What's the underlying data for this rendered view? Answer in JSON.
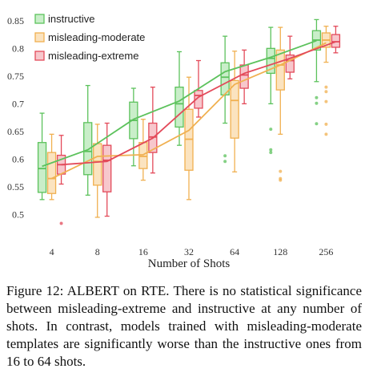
{
  "chart_data": {
    "type": "box",
    "xlabel": "Number of Shots",
    "ylabel": "",
    "categories": [
      "4",
      "8",
      "16",
      "32",
      "64",
      "128",
      "256"
    ],
    "ylim": [
      0.45,
      0.87
    ],
    "yticks": [
      0.5,
      0.55,
      0.6,
      0.65,
      0.7,
      0.75,
      0.8,
      0.85
    ],
    "ytick_labels": [
      "0.5",
      "0.55",
      "0.6",
      "0.65",
      "0.7",
      "0.75",
      "0.8",
      "0.85"
    ],
    "grid": false,
    "legend_position": "top-left",
    "series": [
      {
        "name": "instructive",
        "color": "#5cc25c",
        "fill": "#c9eec9",
        "mean": [
          0.587,
          0.617,
          0.672,
          0.705,
          0.758,
          0.784,
          0.814
        ],
        "boxes": [
          {
            "wlo": 0.527,
            "q1": 0.54,
            "med": 0.583,
            "q3": 0.63,
            "whi": 0.683,
            "out": []
          },
          {
            "wlo": 0.535,
            "q1": 0.572,
            "med": 0.614,
            "q3": 0.666,
            "whi": 0.733,
            "out": []
          },
          {
            "wlo": 0.588,
            "q1": 0.637,
            "med": 0.67,
            "q3": 0.703,
            "whi": 0.728,
            "out": []
          },
          {
            "wlo": 0.625,
            "q1": 0.658,
            "med": 0.7,
            "q3": 0.73,
            "whi": 0.794,
            "out": []
          },
          {
            "wlo": 0.665,
            "q1": 0.716,
            "med": 0.748,
            "q3": 0.774,
            "whi": 0.822,
            "out": [
              0.606,
              0.596
            ]
          },
          {
            "wlo": 0.7,
            "q1": 0.755,
            "med": 0.782,
            "q3": 0.8,
            "whi": 0.838,
            "out": [
              0.654,
              0.617,
              0.612
            ]
          },
          {
            "wlo": 0.74,
            "q1": 0.797,
            "med": 0.815,
            "q3": 0.832,
            "whi": 0.852,
            "out": [
              0.711,
              0.701,
              0.664
            ]
          }
        ]
      },
      {
        "name": "misleading-moderate",
        "color": "#f0b050",
        "fill": "#fbe3bf",
        "mean": [
          0.565,
          0.605,
          0.608,
          0.652,
          0.735,
          0.77,
          0.81
        ],
        "boxes": [
          {
            "wlo": 0.527,
            "q1": 0.538,
            "med": 0.565,
            "q3": 0.612,
            "whi": 0.645,
            "out": []
          },
          {
            "wlo": 0.495,
            "q1": 0.553,
            "med": 0.596,
            "q3": 0.628,
            "whi": 0.663,
            "out": []
          },
          {
            "wlo": 0.562,
            "q1": 0.583,
            "med": 0.605,
            "q3": 0.63,
            "whi": 0.672,
            "out": []
          },
          {
            "wlo": 0.527,
            "q1": 0.58,
            "med": 0.636,
            "q3": 0.69,
            "whi": 0.748,
            "out": []
          },
          {
            "wlo": 0.577,
            "q1": 0.638,
            "med": 0.706,
            "q3": 0.742,
            "whi": 0.795,
            "out": []
          },
          {
            "wlo": 0.645,
            "q1": 0.725,
            "med": 0.77,
            "q3": 0.797,
            "whi": 0.838,
            "out": [
              0.578,
              0.565,
              0.562
            ]
          },
          {
            "wlo": 0.775,
            "q1": 0.802,
            "med": 0.815,
            "q3": 0.828,
            "whi": 0.84,
            "out": [
              0.73,
              0.722,
              0.704,
              0.663,
              0.645
            ]
          }
        ]
      },
      {
        "name": "misleading-extreme",
        "color": "#e34a5a",
        "fill": "#f7c7cc",
        "mean": [
          0.59,
          0.596,
          0.638,
          0.712,
          0.755,
          0.782,
          0.812
        ],
        "boxes": [
          {
            "wlo": 0.555,
            "q1": 0.573,
            "med": 0.59,
            "q3": 0.607,
            "whi": 0.643,
            "out": [
              0.484
            ]
          },
          {
            "wlo": 0.497,
            "q1": 0.541,
            "med": 0.598,
            "q3": 0.625,
            "whi": 0.665,
            "out": []
          },
          {
            "wlo": 0.575,
            "q1": 0.612,
            "med": 0.64,
            "q3": 0.665,
            "whi": 0.73,
            "out": []
          },
          {
            "wlo": 0.676,
            "q1": 0.692,
            "med": 0.715,
            "q3": 0.724,
            "whi": 0.778,
            "out": []
          },
          {
            "wlo": 0.7,
            "q1": 0.728,
            "med": 0.752,
            "q3": 0.77,
            "whi": 0.797,
            "out": []
          },
          {
            "wlo": 0.745,
            "q1": 0.757,
            "med": 0.778,
            "q3": 0.788,
            "whi": 0.822,
            "out": []
          },
          {
            "wlo": 0.792,
            "q1": 0.802,
            "med": 0.812,
            "q3": 0.825,
            "whi": 0.84,
            "out": []
          }
        ]
      }
    ]
  },
  "caption": "Figure 12: ALBERT on RTE. There is no statistical significance between misleading-extreme and instructive at any number of shots. In contrast, models trained with misleading-moderate templates are significantly worse than the instructive ones from 16 to 64 shots."
}
